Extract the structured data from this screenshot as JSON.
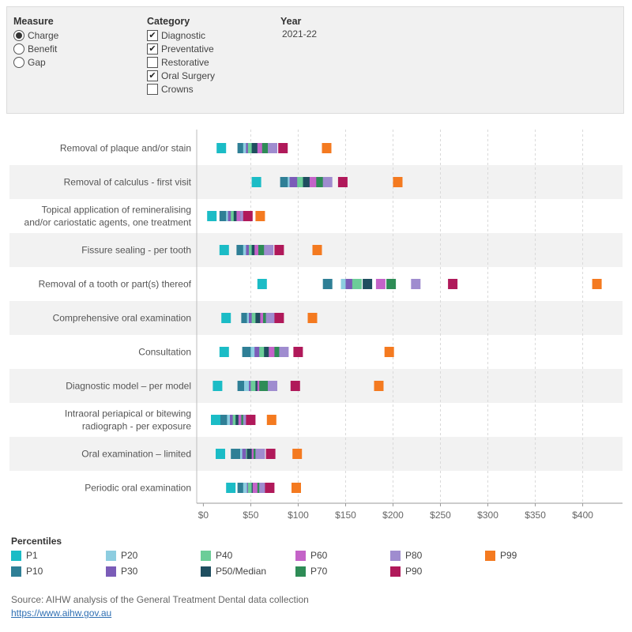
{
  "filters": {
    "measure": {
      "title": "Measure",
      "options": [
        {
          "label": "Charge",
          "selected": true
        },
        {
          "label": "Benefit",
          "selected": false
        },
        {
          "label": "Gap",
          "selected": false
        }
      ]
    },
    "category": {
      "title": "Category",
      "options": [
        {
          "label": "Diagnostic",
          "checked": true
        },
        {
          "label": "Preventative",
          "checked": true
        },
        {
          "label": "Restorative",
          "checked": false
        },
        {
          "label": "Oral Surgery",
          "checked": true
        },
        {
          "label": "Crowns",
          "checked": false
        }
      ]
    },
    "year": {
      "title": "Year",
      "value": "2021-22"
    }
  },
  "legend_title": "Percentiles",
  "source_text": "Source: AIHW analysis of the General Treatment Dental data collection",
  "source_link": "https://www.aihw.gov.au",
  "chart_data": {
    "type": "scatter",
    "orientation": "horizontal",
    "x_ticks": [
      "$0",
      "$50",
      "$100",
      "$150",
      "$200",
      "$250",
      "$300",
      "$350",
      "$400"
    ],
    "xlim": [
      -7,
      442
    ],
    "grid": "vertical dashed",
    "percentile_keys": [
      "P1",
      "P10",
      "P20",
      "P30",
      "P40",
      "P50/Median",
      "P60",
      "P70",
      "P80",
      "P90",
      "P99"
    ],
    "series_colors": {
      "P1": "#1bbcc6",
      "P10": "#2f7f96",
      "P20": "#8dcde0",
      "P30": "#7b5cb8",
      "P40": "#6ccd98",
      "P50/Median": "#1f4e5f",
      "P60": "#c463c8",
      "P70": "#2e8c56",
      "P80": "#9f8ccf",
      "P90": "#b0195a",
      "P99": "#f47a20"
    },
    "legend_order": [
      "P1",
      "P20",
      "P40",
      "P60",
      "P80",
      "P99",
      "P10",
      "P30",
      "P50/Median",
      "P70",
      "P90"
    ],
    "items": [
      {
        "label": [
          "Removal of plaque and/or stain"
        ],
        "values": [
          19,
          41,
          47,
          50,
          52,
          56,
          62,
          67,
          73,
          84,
          130
        ]
      },
      {
        "label": [
          "Removal of calculus - first visit"
        ],
        "values": [
          56,
          86,
          94,
          96,
          104,
          110,
          117,
          124,
          131,
          147,
          205
        ]
      },
      {
        "label": [
          "Topical application of remineralising",
          "and/or cariostatic agents, one treatment"
        ],
        "values": [
          9,
          22,
          29,
          31,
          34,
          37,
          40,
          44,
          44,
          47,
          60
        ]
      },
      {
        "label": [
          "Fissure sealing - per tooth"
        ],
        "values": [
          22,
          40,
          47,
          50,
          53,
          56,
          59,
          63,
          69,
          80,
          120
        ]
      },
      {
        "label": [
          "Removal of a tooth or part(s) thereof"
        ],
        "values": [
          62,
          131,
          150,
          155,
          162,
          173,
          187,
          198,
          224,
          263,
          415
        ]
      },
      {
        "label": [
          "Comprehensive oral examination"
        ],
        "values": [
          24,
          45,
          51,
          53,
          56,
          60,
          65,
          68,
          71,
          80,
          115
        ]
      },
      {
        "label": [
          "Consultation"
        ],
        "values": [
          22,
          46,
          55,
          59,
          64,
          69,
          74,
          80,
          85,
          100,
          196
        ]
      },
      {
        "label": [
          "Diagnostic model – per model"
        ],
        "values": [
          15,
          41,
          48,
          53,
          55,
          60,
          62,
          64,
          73,
          97,
          185
        ]
      },
      {
        "label": [
          "Intraoral periapical or bitewing",
          "radiograph - per exposure"
        ],
        "values": [
          13,
          23,
          30,
          33,
          36,
          39,
          42,
          45,
          47,
          50,
          72
        ]
      },
      {
        "label": [
          "Oral examination – limited"
        ],
        "values": [
          18,
          34,
          44,
          46,
          50,
          51,
          56,
          58,
          60,
          71,
          99
        ]
      },
      {
        "label": [
          "Periodic oral examination"
        ],
        "values": [
          29,
          41,
          47,
          51,
          52,
          56,
          57,
          62,
          64,
          70,
          98
        ]
      }
    ]
  }
}
